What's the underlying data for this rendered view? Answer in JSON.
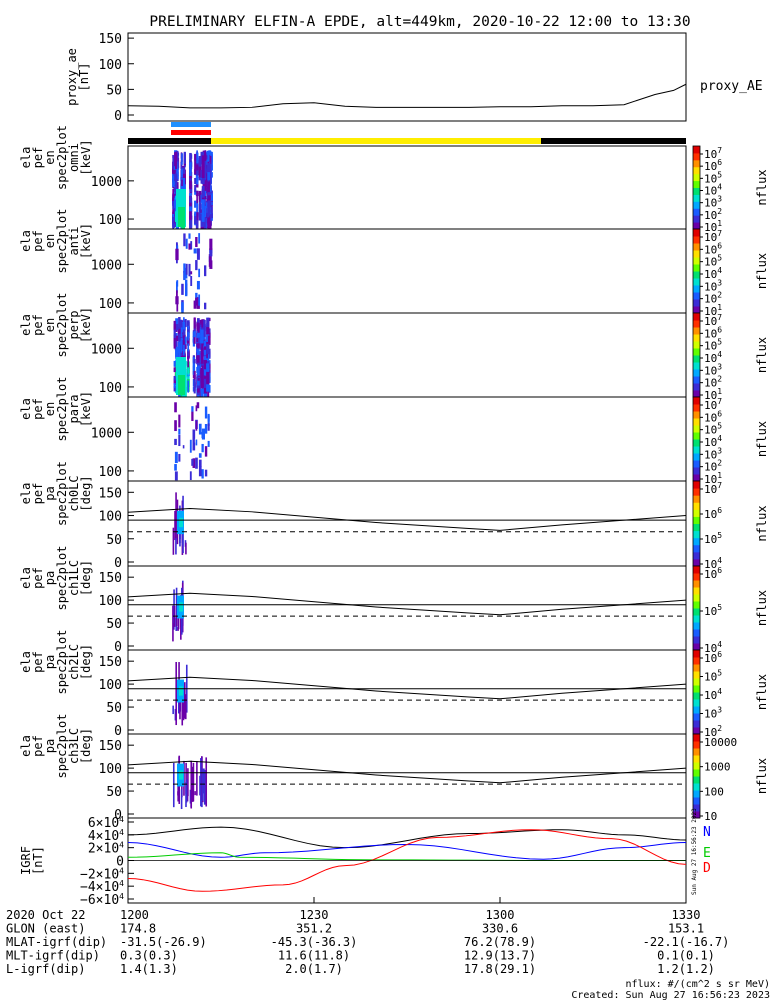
{
  "title": "PRELIMINARY ELFIN-A EPDE, alt=449km, 2020-10-22 12:00 to 13:30",
  "x_range": [
    "12:00",
    "13:30"
  ],
  "chart_data": [
    {
      "type": "line",
      "ylabel": [
        "proxy_ae",
        "[nT]"
      ],
      "yticks": [
        "150",
        "100",
        "50",
        "0"
      ],
      "ylim": [
        0,
        160
      ],
      "series": [
        {
          "name": "proxy_AE",
          "color": "#000000",
          "x": [
            0,
            5,
            10,
            15,
            20,
            25,
            30,
            35,
            40,
            45,
            50,
            55,
            60,
            65,
            70,
            75,
            80,
            82,
            85,
            88,
            90
          ],
          "y": [
            18,
            17,
            14,
            14,
            15,
            22,
            24,
            17,
            15,
            15,
            15,
            15,
            16,
            16,
            18,
            18,
            20,
            28,
            40,
            48,
            60
          ]
        }
      ]
    },
    {
      "type": "spectrogram",
      "ylabel": [
        "ela",
        "pef",
        "en",
        "spec2plot",
        "omni",
        "[keV]"
      ],
      "yticks": [
        "1000",
        "100"
      ],
      "colorbar": {
        "ticks": [
          "10^7",
          "10^6",
          "10^5",
          "10^4",
          "10^3",
          "10^2",
          "10^1"
        ],
        "label": "nflux"
      }
    },
    {
      "type": "spectrogram",
      "ylabel": [
        "ela",
        "pef",
        "en",
        "spec2plot",
        "anti",
        "[keV]"
      ],
      "yticks": [
        "1000",
        "100"
      ],
      "colorbar": {
        "ticks": [
          "10^7",
          "10^6",
          "10^5",
          "10^4",
          "10^3",
          "10^2",
          "10^1"
        ],
        "label": "nflux"
      }
    },
    {
      "type": "spectrogram",
      "ylabel": [
        "ela",
        "pef",
        "en",
        "spec2plot",
        "perp",
        "[keV]"
      ],
      "yticks": [
        "1000",
        "100"
      ],
      "colorbar": {
        "ticks": [
          "10^7",
          "10^6",
          "10^5",
          "10^4",
          "10^3",
          "10^2",
          "10^1"
        ],
        "label": "nflux"
      }
    },
    {
      "type": "spectrogram",
      "ylabel": [
        "ela",
        "pef",
        "en",
        "spec2plot",
        "para",
        "[keV]"
      ],
      "yticks": [
        "1000",
        "100"
      ],
      "colorbar": {
        "ticks": [
          "10^7",
          "10^6",
          "10^5",
          "10^4",
          "10^3",
          "10^2",
          "10^1"
        ],
        "label": "nflux"
      }
    },
    {
      "type": "pitch-angle",
      "ylabel": [
        "ela",
        "pef",
        "pa",
        "spec2plot",
        "ch0LC",
        "[deg]"
      ],
      "yticks": [
        "150",
        "100",
        "50",
        "0"
      ],
      "colorbar": {
        "ticks": [
          "10^7",
          "10^6",
          "10^5",
          "10^4"
        ],
        "label": "nflux"
      }
    },
    {
      "type": "pitch-angle",
      "ylabel": [
        "ela",
        "pef",
        "pa",
        "spec2plot",
        "ch1LC",
        "[deg]"
      ],
      "yticks": [
        "150",
        "100",
        "50",
        "0"
      ],
      "colorbar": {
        "ticks": [
          "10^6",
          "10^5",
          "10^4"
        ],
        "label": "nflux"
      }
    },
    {
      "type": "pitch-angle",
      "ylabel": [
        "ela",
        "pef",
        "pa",
        "spec2plot",
        "ch2LC",
        "[deg]"
      ],
      "yticks": [
        "150",
        "100",
        "50",
        "0"
      ],
      "colorbar": {
        "ticks": [
          "10^6",
          "10^5",
          "10^4",
          "10^3",
          "10^2"
        ],
        "label": "nflux"
      }
    },
    {
      "type": "pitch-angle",
      "ylabel": [
        "ela",
        "pef",
        "pa",
        "spec2plot",
        "ch3LC",
        "[deg]"
      ],
      "yticks": [
        "150",
        "100",
        "50",
        "0"
      ],
      "colorbar": {
        "ticks": [
          "10000",
          "1000",
          "100",
          "10"
        ],
        "label": "nflux"
      }
    },
    {
      "type": "line",
      "ylabel": [
        "IGRF",
        "[nT]"
      ],
      "yticks": [
        "6×10^4",
        "4×10^4",
        "2×10^4",
        "0",
        "−2×10^4",
        "−4×10^4",
        "−6×10^4"
      ],
      "ylim": [
        -60000,
        60000
      ],
      "series": [
        {
          "name": "N",
          "color": "#0000ff"
        },
        {
          "name": "E",
          "color": "#00cc00"
        },
        {
          "name": "D",
          "color": "#ff0000"
        }
      ]
    }
  ],
  "footer": {
    "rows": [
      {
        "label": "2020 Oct 22",
        "values": [
          "1200",
          "1230",
          "1300",
          "1330"
        ]
      },
      {
        "label": "GLON (east)",
        "values": [
          "174.8",
          "351.2",
          "330.6",
          "153.1"
        ]
      },
      {
        "label": "MLAT-igrf(dip)",
        "values": [
          "-31.5(-26.9)",
          "-45.3(-36.3)",
          "76.2(78.9)",
          "-22.1(-16.7)"
        ]
      },
      {
        "label": "MLT-igrf(dip)",
        "values": [
          "0.3(0.3)",
          "11.6(11.8)",
          "12.9(13.7)",
          "0.1(0.1)"
        ]
      },
      {
        "label": "L-igrf(dip)",
        "values": [
          "1.4(1.3)",
          "2.0(1.7)",
          "17.8(29.1)",
          "1.2(1.2)"
        ]
      }
    ],
    "units_note": "nflux: #/(cm^2 s sr MeV)",
    "created": "Created: Sun Aug 27 16:56:23 2023",
    "side_stamp": "Sun Aug 27 16:56:23 2023"
  },
  "colors": {
    "yellow_bar": "#ffee00",
    "blue_marker": "#1e90ff",
    "red_marker": "#ff0000"
  }
}
